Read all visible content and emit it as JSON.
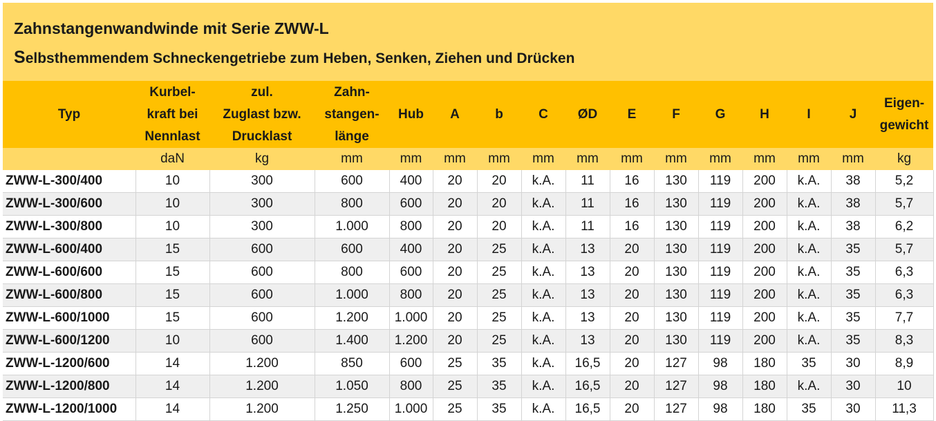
{
  "title": "Zahnstangenwandwinde mit Serie ZWW-L",
  "subtitle_first": "S",
  "subtitle_rest": "elbsthemmendem Schneckengetriebe zum Heben, Senken, Ziehen und Drücken",
  "headers": {
    "typ": "Typ",
    "kurbel": [
      "Kurbel-",
      "kraft bei",
      "Nennlast"
    ],
    "zuglast": [
      "zul.",
      "Zuglast bzw.",
      "Drucklast"
    ],
    "zahn": [
      "Zahn-",
      "stangen-",
      "länge"
    ],
    "hub": "Hub",
    "a": "A",
    "b": "b",
    "c": "C",
    "d": "ØD",
    "e": "E",
    "f": "F",
    "g": "G",
    "h": "H",
    "i": "I",
    "j": "J",
    "gewicht": [
      "Eigen-",
      "gewicht"
    ]
  },
  "units": [
    "",
    "daN",
    "kg",
    "mm",
    "mm",
    "mm",
    "mm",
    "mm",
    "mm",
    "mm",
    "mm",
    "mm",
    "mm",
    "mm",
    "mm",
    "kg"
  ],
  "rows": [
    [
      "ZWW-L-300/400",
      "10",
      "300",
      "600",
      "400",
      "20",
      "20",
      "k.A.",
      "11",
      "16",
      "130",
      "119",
      "200",
      "k.A.",
      "38",
      "5,2"
    ],
    [
      "ZWW-L-300/600",
      "10",
      "300",
      "800",
      "600",
      "20",
      "20",
      "k.A.",
      "11",
      "16",
      "130",
      "119",
      "200",
      "k.A.",
      "38",
      "5,7"
    ],
    [
      "ZWW-L-300/800",
      "10",
      "300",
      "1.000",
      "800",
      "20",
      "20",
      "k.A.",
      "11",
      "16",
      "130",
      "119",
      "200",
      "k.A.",
      "38",
      "6,2"
    ],
    [
      "ZWW-L-600/400",
      "15",
      "600",
      "600",
      "400",
      "20",
      "25",
      "k.A.",
      "13",
      "20",
      "130",
      "119",
      "200",
      "k.A.",
      "35",
      "5,7"
    ],
    [
      "ZWW-L-600/600",
      "15",
      "600",
      "800",
      "600",
      "20",
      "25",
      "k.A.",
      "13",
      "20",
      "130",
      "119",
      "200",
      "k.A.",
      "35",
      "6,3"
    ],
    [
      "ZWW-L-600/800",
      "15",
      "600",
      "1.000",
      "800",
      "20",
      "25",
      "k.A.",
      "13",
      "20",
      "130",
      "119",
      "200",
      "k.A.",
      "35",
      "6,3"
    ],
    [
      "ZWW-L-600/1000",
      "15",
      "600",
      "1.200",
      "1.000",
      "20",
      "25",
      "k.A.",
      "13",
      "20",
      "130",
      "119",
      "200",
      "k.A.",
      "35",
      "7,7"
    ],
    [
      "ZWW-L-600/1200",
      "10",
      "600",
      "1.400",
      "1.200",
      "20",
      "25",
      "k.A.",
      "13",
      "20",
      "130",
      "119",
      "200",
      "k.A.",
      "35",
      "8,3"
    ],
    [
      "ZWW-L-1200/600",
      "14",
      "1.200",
      "850",
      "600",
      "25",
      "35",
      "k.A.",
      "16,5",
      "20",
      "127",
      "98",
      "180",
      "35",
      "30",
      "8,9"
    ],
    [
      "ZWW-L-1200/800",
      "14",
      "1.200",
      "1.050",
      "800",
      "25",
      "35",
      "k.A.",
      "16,5",
      "20",
      "127",
      "98",
      "180",
      "k.A.",
      "30",
      "10"
    ],
    [
      "ZWW-L-1200/1000",
      "14",
      "1.200",
      "1.250",
      "1.000",
      "25",
      "35",
      "k.A.",
      "16,5",
      "20",
      "127",
      "98",
      "180",
      "35",
      "30",
      "11,3"
    ]
  ]
}
